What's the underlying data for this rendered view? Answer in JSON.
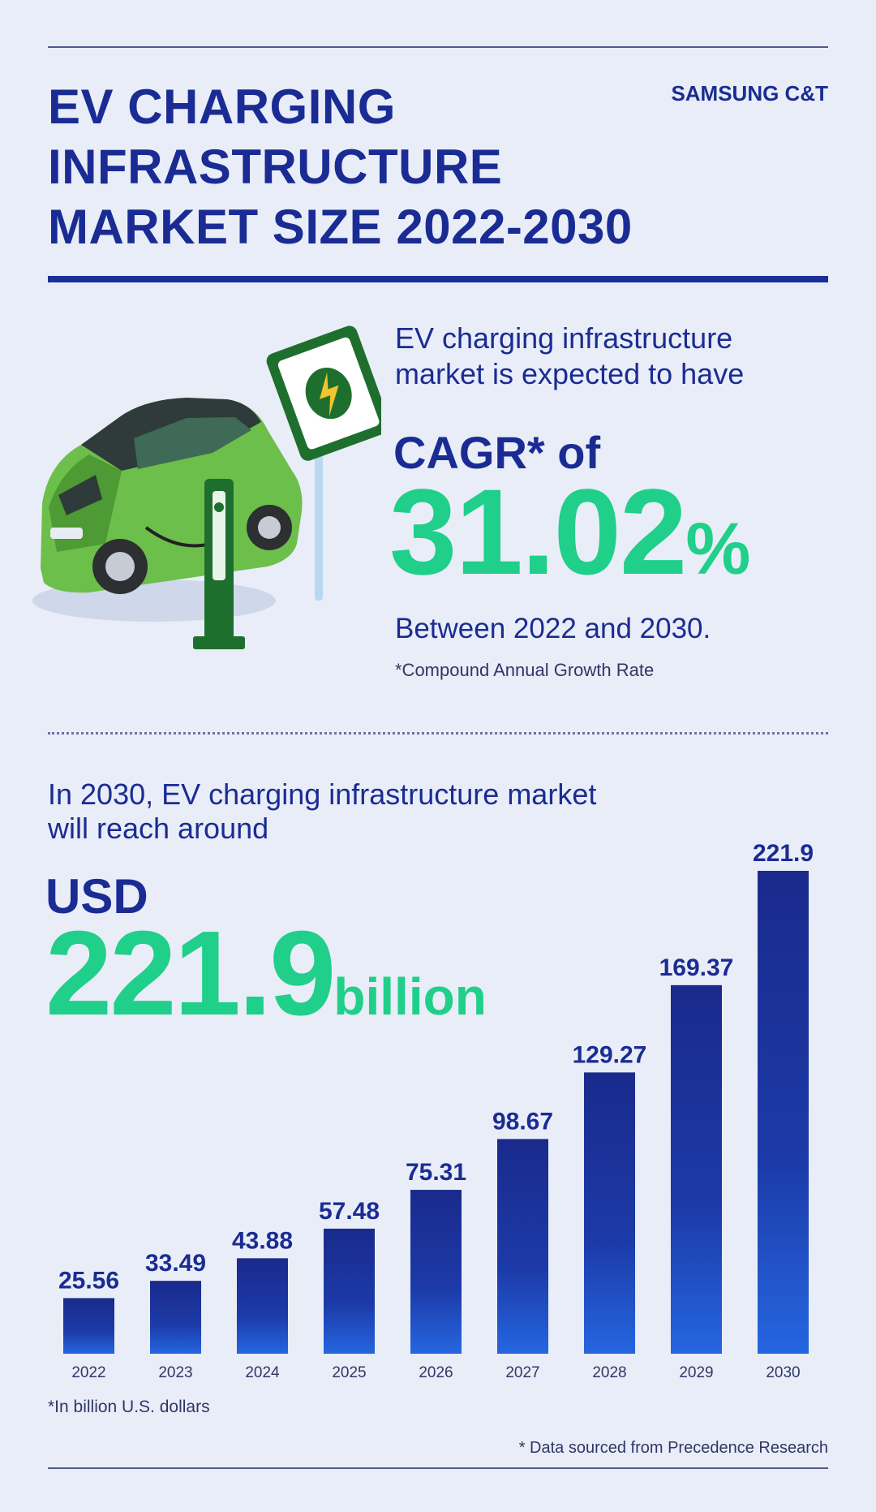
{
  "brand": "SAMSUNG C&T",
  "title_lines": [
    "EV CHARGING",
    "INFRASTRUCTURE",
    "MARKET SIZE 2022-2030"
  ],
  "cagr": {
    "intro_lines": [
      "EV charging infrastructure",
      "market is expected to have"
    ],
    "label": "CAGR* of",
    "value": "31.02",
    "unit": "%",
    "period": "Between 2022 and 2030.",
    "footnote": "*Compound Annual Growth Rate"
  },
  "forecast": {
    "intro_lines": [
      "In 2030, EV charging infrastructure market",
      "will reach around"
    ],
    "currency": "USD",
    "value": "221.9",
    "unit": "billion"
  },
  "chart_data": {
    "type": "bar",
    "categories": [
      "2022",
      "2023",
      "2024",
      "2025",
      "2026",
      "2027",
      "2028",
      "2029",
      "2030"
    ],
    "values": [
      25.56,
      33.49,
      43.88,
      57.48,
      75.31,
      98.67,
      129.27,
      169.37,
      221.9
    ],
    "value_labels": [
      "25.56",
      "33.49",
      "43.88",
      "57.48",
      "75.31",
      "98.67",
      "129.27",
      "169.37",
      "221.9"
    ],
    "ylim": [
      0,
      221.9
    ],
    "grid": false,
    "bar_color_top": "#1a2a8c",
    "bar_color_bottom": "#2566e0"
  },
  "unit_note": "*In billion U.S. dollars",
  "source_note": "* Data sourced from Precedence Research",
  "colors": {
    "background": "#e9edf7",
    "navy": "#1a2c93",
    "green": "#1fcf8a"
  }
}
